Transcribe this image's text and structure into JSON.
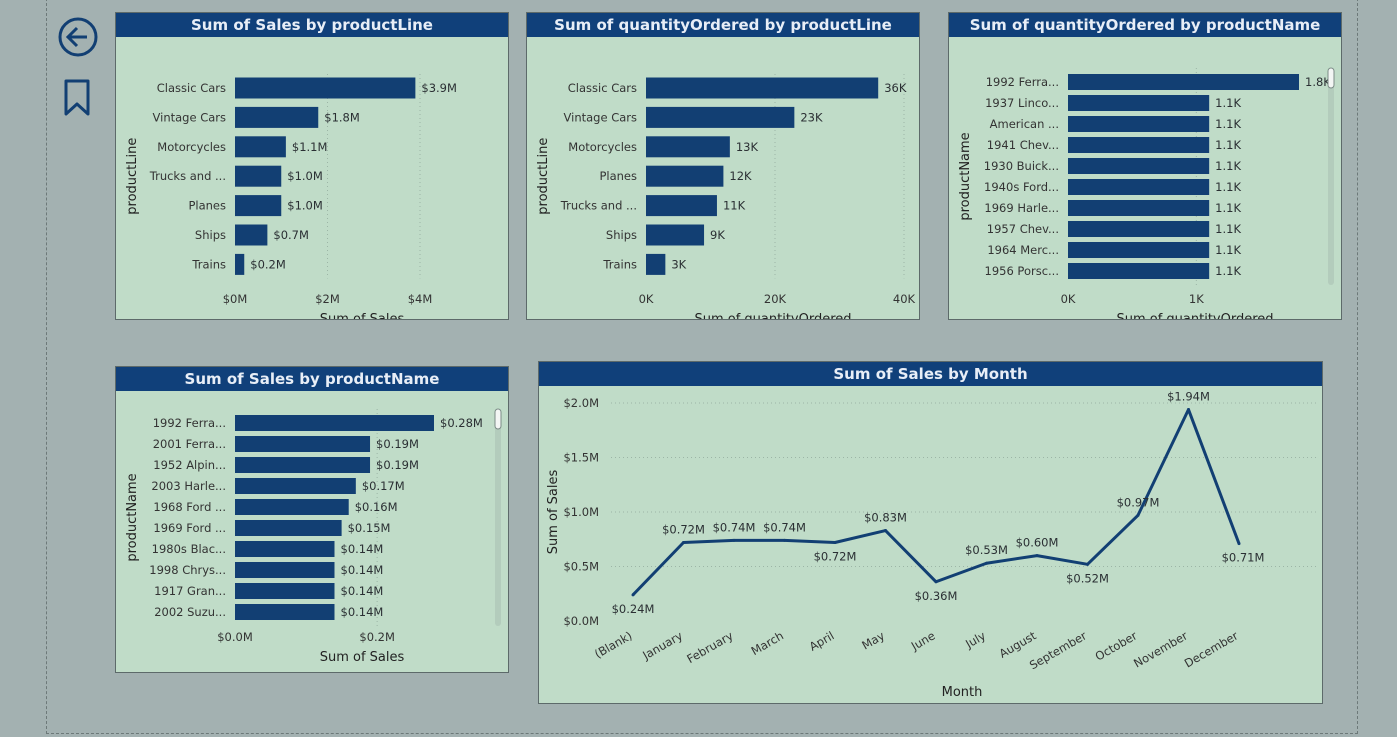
{
  "nav": {
    "back_icon": "back-arrow-icon",
    "bookmark_icon": "bookmark-icon"
  },
  "colors": {
    "bar": "#123f73",
    "title_bar": "#10407a",
    "panel_bg": "#c0dcc8"
  },
  "chart_data": [
    {
      "id": "sales-by-productline",
      "type": "bar",
      "orientation": "horizontal",
      "title": "Sum of Sales by productLine",
      "xlabel": "Sum of Sales",
      "ylabel": "productLine",
      "categories": [
        "Classic Cars",
        "Vintage Cars",
        "Motorcycles",
        "Trucks and ...",
        "Planes",
        "Ships",
        "Trains"
      ],
      "values": [
        3.9,
        1.8,
        1.1,
        1.0,
        1.0,
        0.7,
        0.2
      ],
      "value_labels": [
        "$3.9M",
        "$1.8M",
        "$1.1M",
        "$1.0M",
        "$1.0M",
        "$0.7M",
        "$0.2M"
      ],
      "xlim": [
        0,
        4.8
      ],
      "xticks": [
        0,
        2,
        4
      ],
      "xtick_labels": [
        "$0M",
        "$2M",
        "$4M"
      ]
    },
    {
      "id": "qty-by-productline",
      "type": "bar",
      "orientation": "horizontal",
      "title": "Sum of quantityOrdered by productLine",
      "xlabel": "Sum of quantityOrdered",
      "ylabel": "productLine",
      "categories": [
        "Classic Cars",
        "Vintage Cars",
        "Motorcycles",
        "Planes",
        "Trucks and ...",
        "Ships",
        "Trains"
      ],
      "values": [
        36,
        23,
        13,
        12,
        11,
        9,
        3
      ],
      "value_labels": [
        "36K",
        "23K",
        "13K",
        "12K",
        "11K",
        "9K",
        "3K"
      ],
      "xlim": [
        0,
        40
      ],
      "xticks": [
        0,
        20,
        40
      ],
      "xtick_labels": [
        "0K",
        "20K",
        "40K"
      ]
    },
    {
      "id": "qty-by-productname",
      "type": "bar",
      "orientation": "horizontal",
      "title": "Sum of quantityOrdered by productName",
      "xlabel": "Sum of quantityOrdered",
      "ylabel": "productName",
      "categories": [
        "1992 Ferra...",
        "1937 Linco...",
        "American ...",
        "1941 Chev...",
        "1930 Buick...",
        "1940s Ford...",
        "1969 Harle...",
        "1957 Chev...",
        "1964 Merc...",
        "1956 Porsc..."
      ],
      "values": [
        1.8,
        1.1,
        1.1,
        1.1,
        1.1,
        1.1,
        1.1,
        1.1,
        1.1,
        1.1
      ],
      "value_labels": [
        "1.8K",
        "1.1K",
        "1.1K",
        "1.1K",
        "1.1K",
        "1.1K",
        "1.1K",
        "1.1K",
        "1.1K",
        "1.1K"
      ],
      "xlim": [
        0,
        1.8
      ],
      "xticks": [
        0,
        1
      ],
      "xtick_labels": [
        "0K",
        "1K"
      ]
    },
    {
      "id": "sales-by-productname",
      "type": "bar",
      "orientation": "horizontal",
      "title": "Sum of Sales by productName",
      "xlabel": "Sum of Sales",
      "ylabel": "productName",
      "categories": [
        "1992 Ferra...",
        "2001 Ferra...",
        "1952 Alpin...",
        "2003 Harle...",
        "1968 Ford ...",
        "1969 Ford ...",
        "1980s Blac...",
        "1998 Chrys...",
        "1917 Gran...",
        "2002 Suzu..."
      ],
      "values": [
        0.28,
        0.19,
        0.19,
        0.17,
        0.16,
        0.15,
        0.14,
        0.14,
        0.14,
        0.14
      ],
      "value_labels": [
        "$0.28M",
        "$0.19M",
        "$0.19M",
        "$0.17M",
        "$0.16M",
        "$0.15M",
        "$0.14M",
        "$0.14M",
        "$0.14M",
        "$0.14M"
      ],
      "xlim": [
        0,
        0.28
      ],
      "xticks": [
        0,
        0.2
      ],
      "xtick_labels": [
        "$0.0M",
        "$0.2M"
      ]
    },
    {
      "id": "sales-by-month",
      "type": "line",
      "title": "Sum of Sales by Month",
      "xlabel": "Month",
      "ylabel": "Sum of Sales",
      "categories": [
        "(Blank)",
        "January",
        "February",
        "March",
        "April",
        "May",
        "June",
        "July",
        "August",
        "September",
        "October",
        "November",
        "December"
      ],
      "values": [
        0.24,
        0.72,
        0.74,
        0.74,
        0.72,
        0.83,
        0.36,
        0.53,
        0.6,
        0.52,
        0.97,
        1.94,
        0.71
      ],
      "value_labels": [
        "$0.24M",
        "$0.72M",
        "$0.74M",
        "$0.74M",
        "$0.72M",
        "$0.83M",
        "$0.36M",
        "$0.53M",
        "$0.60M",
        "$0.52M",
        "$0.97M",
        "$1.94M",
        "$0.71M"
      ],
      "ylim": [
        0,
        2.0
      ],
      "yticks": [
        0,
        0.5,
        1.0,
        1.5,
        2.0
      ],
      "ytick_labels": [
        "$0.0M",
        "$0.5M",
        "$1.0M",
        "$1.5M",
        "$2.0M"
      ]
    }
  ]
}
